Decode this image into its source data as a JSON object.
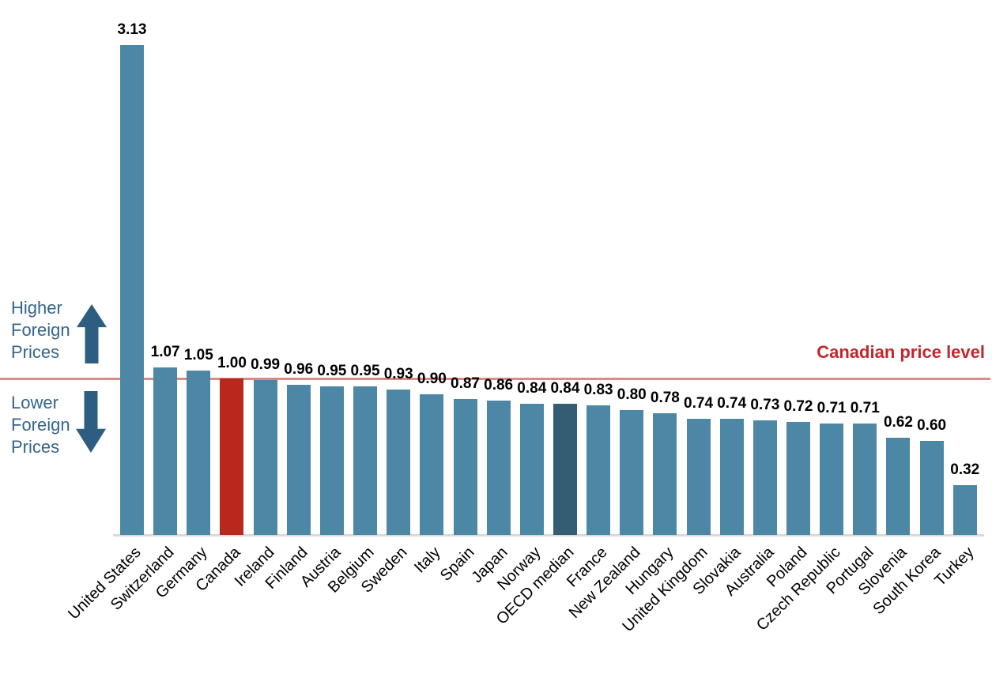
{
  "chart_data": {
    "type": "bar",
    "title": "",
    "xlabel": "",
    "ylabel": "",
    "ylim": [
      0,
      3.3
    ],
    "grid": false,
    "legend": false,
    "value_labels_decimals": 2,
    "categories": [
      "United States",
      "Switzerland",
      "Germany",
      "Canada",
      "Ireland",
      "Finland",
      "Austria",
      "Belgium",
      "Sweden",
      "Italy",
      "Spain",
      "Japan",
      "Norway",
      "OECD median",
      "France",
      "New Zealand",
      "Hungary",
      "United Kingdom",
      "Slovakia",
      "Australia",
      "Poland",
      "Czech Republic",
      "Portugal",
      "Slovenia",
      "South Korea",
      "Turkey"
    ],
    "values": [
      3.13,
      1.07,
      1.05,
      1.0,
      0.99,
      0.96,
      0.95,
      0.95,
      0.93,
      0.9,
      0.87,
      0.86,
      0.84,
      0.84,
      0.83,
      0.8,
      0.78,
      0.74,
      0.74,
      0.73,
      0.72,
      0.71,
      0.71,
      0.62,
      0.6,
      0.32
    ],
    "highlighted_bars": {
      "Canada": "canada_red",
      "OECD median": "oecd_dark"
    },
    "reference_line": {
      "value": 1.0,
      "label": "Canadian price level"
    },
    "annotations": {
      "higher": {
        "lines": [
          "Higher",
          "Foreign",
          "Prices"
        ],
        "icon": "up-arrow-icon"
      },
      "lower": {
        "lines": [
          "Lower",
          "Foreign",
          "Prices"
        ],
        "icon": "down-arrow-icon"
      }
    },
    "colors": {
      "bar_default": "#4d87a6",
      "canada_red": "#b9281c",
      "oecd_dark": "#345d73",
      "reference_line": "#d98c83",
      "reference_label": "#c2262b",
      "annotation_text": "#34658d",
      "annotation_arrow": "#2d5d80",
      "axis_line": "#d9d9d9",
      "value_label": "#000000",
      "category_label": "#000000"
    }
  }
}
